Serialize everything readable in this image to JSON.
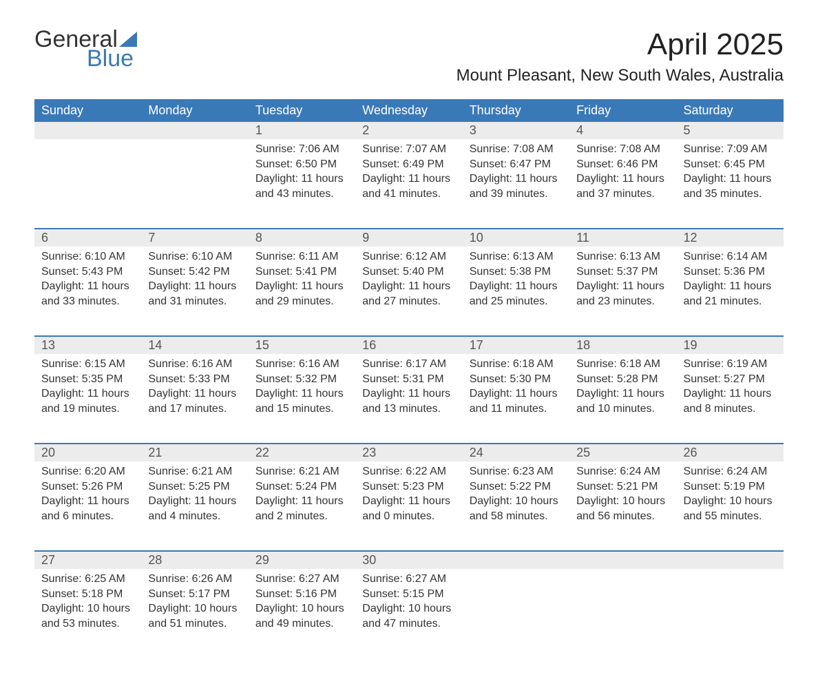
{
  "brand": {
    "part1": "General",
    "part2": "Blue",
    "accent_color": "#3a79b7",
    "text_color": "#333333"
  },
  "title": "April 2025",
  "location": "Mount Pleasant, New South Wales, Australia",
  "colors": {
    "header_bg": "#3a79b7",
    "header_text": "#ffffff",
    "daynum_bg": "#ececec",
    "row_divider": "#3a79b7",
    "body_text": "#333333",
    "page_bg": "#ffffff"
  },
  "day_headers": [
    "Sunday",
    "Monday",
    "Tuesday",
    "Wednesday",
    "Thursday",
    "Friday",
    "Saturday"
  ],
  "weeks": [
    [
      null,
      null,
      {
        "n": "1",
        "sunrise": "7:06 AM",
        "sunset": "6:50 PM",
        "daylight": "11 hours and 43 minutes."
      },
      {
        "n": "2",
        "sunrise": "7:07 AM",
        "sunset": "6:49 PM",
        "daylight": "11 hours and 41 minutes."
      },
      {
        "n": "3",
        "sunrise": "7:08 AM",
        "sunset": "6:47 PM",
        "daylight": "11 hours and 39 minutes."
      },
      {
        "n": "4",
        "sunrise": "7:08 AM",
        "sunset": "6:46 PM",
        "daylight": "11 hours and 37 minutes."
      },
      {
        "n": "5",
        "sunrise": "7:09 AM",
        "sunset": "6:45 PM",
        "daylight": "11 hours and 35 minutes."
      }
    ],
    [
      {
        "n": "6",
        "sunrise": "6:10 AM",
        "sunset": "5:43 PM",
        "daylight": "11 hours and 33 minutes."
      },
      {
        "n": "7",
        "sunrise": "6:10 AM",
        "sunset": "5:42 PM",
        "daylight": "11 hours and 31 minutes."
      },
      {
        "n": "8",
        "sunrise": "6:11 AM",
        "sunset": "5:41 PM",
        "daylight": "11 hours and 29 minutes."
      },
      {
        "n": "9",
        "sunrise": "6:12 AM",
        "sunset": "5:40 PM",
        "daylight": "11 hours and 27 minutes."
      },
      {
        "n": "10",
        "sunrise": "6:13 AM",
        "sunset": "5:38 PM",
        "daylight": "11 hours and 25 minutes."
      },
      {
        "n": "11",
        "sunrise": "6:13 AM",
        "sunset": "5:37 PM",
        "daylight": "11 hours and 23 minutes."
      },
      {
        "n": "12",
        "sunrise": "6:14 AM",
        "sunset": "5:36 PM",
        "daylight": "11 hours and 21 minutes."
      }
    ],
    [
      {
        "n": "13",
        "sunrise": "6:15 AM",
        "sunset": "5:35 PM",
        "daylight": "11 hours and 19 minutes."
      },
      {
        "n": "14",
        "sunrise": "6:16 AM",
        "sunset": "5:33 PM",
        "daylight": "11 hours and 17 minutes."
      },
      {
        "n": "15",
        "sunrise": "6:16 AM",
        "sunset": "5:32 PM",
        "daylight": "11 hours and 15 minutes."
      },
      {
        "n": "16",
        "sunrise": "6:17 AM",
        "sunset": "5:31 PM",
        "daylight": "11 hours and 13 minutes."
      },
      {
        "n": "17",
        "sunrise": "6:18 AM",
        "sunset": "5:30 PM",
        "daylight": "11 hours and 11 minutes."
      },
      {
        "n": "18",
        "sunrise": "6:18 AM",
        "sunset": "5:28 PM",
        "daylight": "11 hours and 10 minutes."
      },
      {
        "n": "19",
        "sunrise": "6:19 AM",
        "sunset": "5:27 PM",
        "daylight": "11 hours and 8 minutes."
      }
    ],
    [
      {
        "n": "20",
        "sunrise": "6:20 AM",
        "sunset": "5:26 PM",
        "daylight": "11 hours and 6 minutes."
      },
      {
        "n": "21",
        "sunrise": "6:21 AM",
        "sunset": "5:25 PM",
        "daylight": "11 hours and 4 minutes."
      },
      {
        "n": "22",
        "sunrise": "6:21 AM",
        "sunset": "5:24 PM",
        "daylight": "11 hours and 2 minutes."
      },
      {
        "n": "23",
        "sunrise": "6:22 AM",
        "sunset": "5:23 PM",
        "daylight": "11 hours and 0 minutes."
      },
      {
        "n": "24",
        "sunrise": "6:23 AM",
        "sunset": "5:22 PM",
        "daylight": "10 hours and 58 minutes."
      },
      {
        "n": "25",
        "sunrise": "6:24 AM",
        "sunset": "5:21 PM",
        "daylight": "10 hours and 56 minutes."
      },
      {
        "n": "26",
        "sunrise": "6:24 AM",
        "sunset": "5:19 PM",
        "daylight": "10 hours and 55 minutes."
      }
    ],
    [
      {
        "n": "27",
        "sunrise": "6:25 AM",
        "sunset": "5:18 PM",
        "daylight": "10 hours and 53 minutes."
      },
      {
        "n": "28",
        "sunrise": "6:26 AM",
        "sunset": "5:17 PM",
        "daylight": "10 hours and 51 minutes."
      },
      {
        "n": "29",
        "sunrise": "6:27 AM",
        "sunset": "5:16 PM",
        "daylight": "10 hours and 49 minutes."
      },
      {
        "n": "30",
        "sunrise": "6:27 AM",
        "sunset": "5:15 PM",
        "daylight": "10 hours and 47 minutes."
      },
      null,
      null,
      null
    ]
  ],
  "labels": {
    "sunrise": "Sunrise: ",
    "sunset": "Sunset: ",
    "daylight": "Daylight: "
  }
}
